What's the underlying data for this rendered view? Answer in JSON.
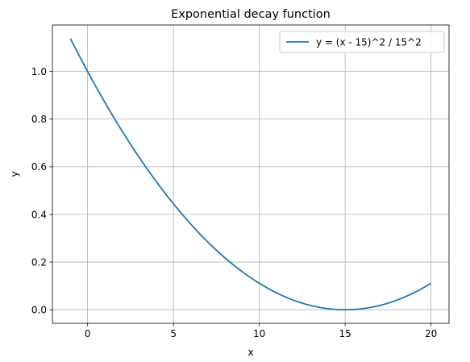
{
  "chart_data": {
    "type": "line",
    "title": "Exponential decay function",
    "xlabel": "x",
    "ylabel": "y",
    "xlim": [
      -2.05,
      21.05
    ],
    "ylim": [
      -0.0569,
      1.195
    ],
    "x_ticks": [
      0,
      5,
      10,
      15,
      20
    ],
    "x_tick_labels": [
      "0",
      "5",
      "10",
      "15",
      "20"
    ],
    "y_ticks": [
      0.0,
      0.2,
      0.4,
      0.6,
      0.8,
      1.0
    ],
    "y_tick_labels": [
      "0.0",
      "0.2",
      "0.4",
      "0.6",
      "0.8",
      "1.0"
    ],
    "grid": true,
    "legend_position": "top-right",
    "series": [
      {
        "name": "y = (x - 15)^2 / 15^2",
        "color": "#1f77b4",
        "x": [
          -1,
          0,
          1,
          2,
          3,
          4,
          5,
          6,
          7,
          8,
          9,
          10,
          11,
          12,
          13,
          14,
          15,
          16,
          17,
          18,
          19,
          20
        ],
        "y": [
          1.1378,
          1.0,
          0.8711,
          0.7511,
          0.64,
          0.5378,
          0.4444,
          0.36,
          0.2844,
          0.2178,
          0.16,
          0.1111,
          0.0711,
          0.04,
          0.0178,
          0.0044,
          0.0,
          0.0044,
          0.0178,
          0.04,
          0.0711,
          0.1111
        ]
      }
    ]
  }
}
